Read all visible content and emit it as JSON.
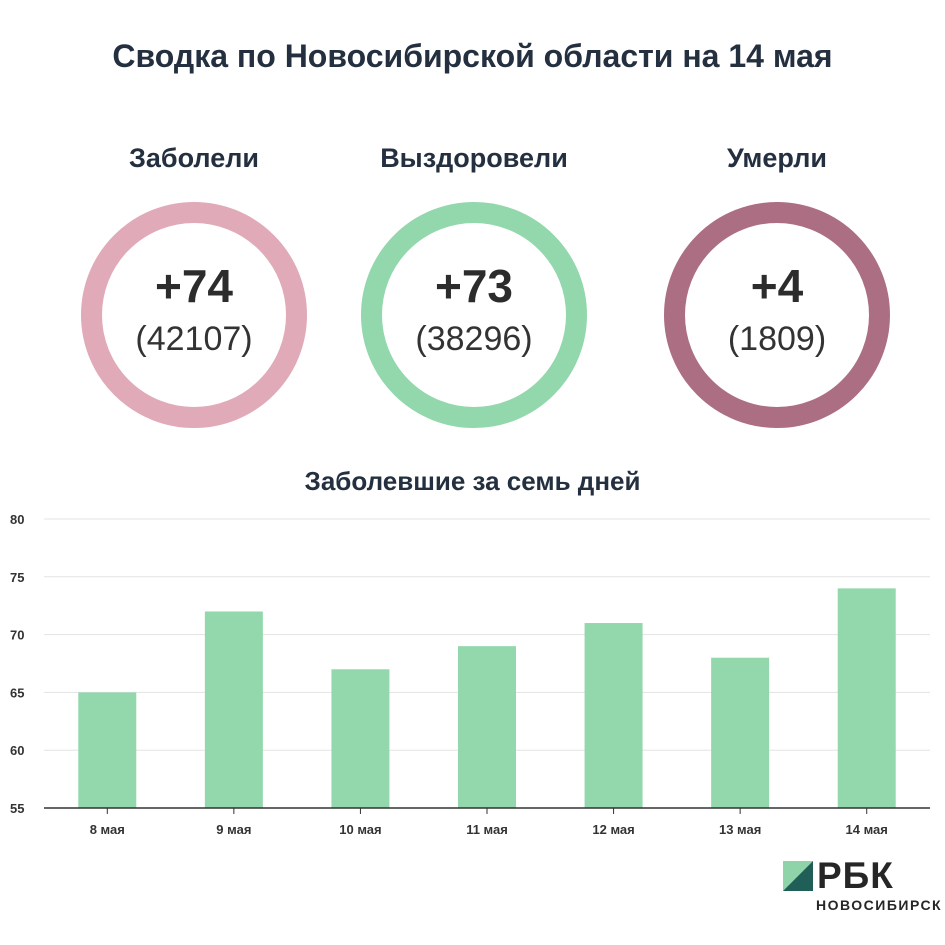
{
  "title": "Сводка по Новосибирской области на 14 мая",
  "stats": [
    {
      "label": "Заболели",
      "delta": "+74",
      "total": "(42107)",
      "color": "#e0aab9"
    },
    {
      "label": "Выздоровели",
      "delta": "+73",
      "total": "(38296)",
      "color": "#93d7ac"
    },
    {
      "label": "Умерли",
      "delta": "+4",
      "total": "(1809)",
      "color": "#ab6e83"
    }
  ],
  "chart_data": {
    "type": "bar",
    "title": "Заболевшие за семь дней",
    "categories": [
      "8 мая",
      "9 мая",
      "10 мая",
      "11 мая",
      "12 мая",
      "13 мая",
      "14 мая"
    ],
    "values": [
      65,
      72,
      67,
      69,
      71,
      68,
      74
    ],
    "ylim": [
      55,
      80
    ],
    "yticks": [
      55,
      60,
      65,
      70,
      75,
      80
    ],
    "grid": true,
    "bar_color": "#93d7ac"
  },
  "logo": {
    "name": "РБК",
    "sub": "НОВОСИБИРСК",
    "color_light": "#8fd3a8",
    "color_dark": "#1f5f58"
  }
}
